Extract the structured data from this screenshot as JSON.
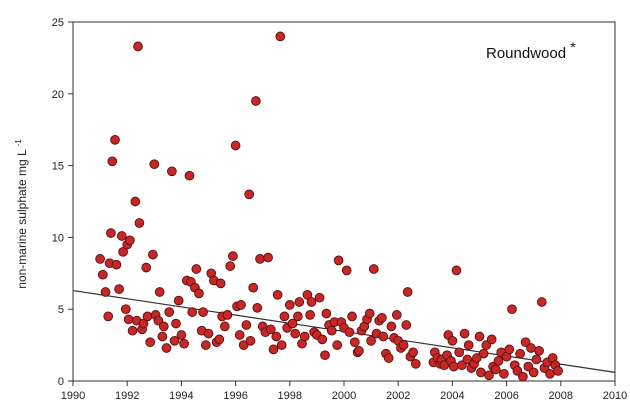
{
  "chart_data": {
    "type": "scatter",
    "site_label": "Roundwood",
    "site_marker": "*",
    "xlabel": "",
    "ylabel_main": "non-marine sulphate mg L",
    "ylabel_sup": "-1",
    "xlim": [
      1990,
      2010
    ],
    "ylim": [
      0,
      25
    ],
    "xticks": [
      1990,
      1992,
      1994,
      1996,
      1998,
      2000,
      2002,
      2004,
      2006,
      2008,
      2010
    ],
    "yticks": [
      0,
      5,
      10,
      15,
      20,
      25
    ],
    "point_color": "#c62828",
    "trend": {
      "x1": 1990,
      "y1": 6.3,
      "x2": 2010,
      "y2": 0.6
    },
    "series": [
      {
        "points": [
          [
            1991.0,
            8.5
          ],
          [
            1991.1,
            7.4
          ],
          [
            1991.2,
            6.2
          ],
          [
            1991.3,
            4.5
          ],
          [
            1991.35,
            8.2
          ],
          [
            1991.4,
            10.3
          ],
          [
            1991.45,
            15.3
          ],
          [
            1991.55,
            16.8
          ],
          [
            1991.6,
            8.1
          ],
          [
            1991.7,
            6.4
          ],
          [
            1991.8,
            10.1
          ],
          [
            1991.85,
            9.0
          ],
          [
            1991.95,
            5.0
          ],
          [
            1992.0,
            9.5
          ],
          [
            1992.05,
            4.3
          ],
          [
            1992.1,
            9.8
          ],
          [
            1992.2,
            3.5
          ],
          [
            1992.3,
            12.5
          ],
          [
            1992.35,
            4.2
          ],
          [
            1992.4,
            23.3
          ],
          [
            1992.45,
            11.0
          ],
          [
            1992.55,
            3.6
          ],
          [
            1992.6,
            4.0
          ],
          [
            1992.7,
            7.9
          ],
          [
            1992.75,
            4.5
          ],
          [
            1992.85,
            2.7
          ],
          [
            1992.95,
            8.8
          ],
          [
            1993.0,
            15.1
          ],
          [
            1993.05,
            4.6
          ],
          [
            1993.15,
            4.2
          ],
          [
            1993.2,
            6.2
          ],
          [
            1993.3,
            3.1
          ],
          [
            1993.35,
            3.8
          ],
          [
            1993.45,
            2.3
          ],
          [
            1993.55,
            4.8
          ],
          [
            1993.65,
            14.6
          ],
          [
            1993.75,
            2.8
          ],
          [
            1993.8,
            4.0
          ],
          [
            1993.9,
            5.6
          ],
          [
            1994.0,
            3.2
          ],
          [
            1994.1,
            2.6
          ],
          [
            1994.2,
            7.0
          ],
          [
            1994.3,
            14.3
          ],
          [
            1994.35,
            6.9
          ],
          [
            1994.4,
            4.8
          ],
          [
            1994.5,
            6.5
          ],
          [
            1994.55,
            7.8
          ],
          [
            1994.65,
            6.1
          ],
          [
            1994.75,
            3.5
          ],
          [
            1994.8,
            4.8
          ],
          [
            1994.9,
            2.5
          ],
          [
            1995.0,
            3.3
          ],
          [
            1995.1,
            7.5
          ],
          [
            1995.2,
            7.0
          ],
          [
            1995.3,
            2.7
          ],
          [
            1995.4,
            2.9
          ],
          [
            1995.45,
            6.8
          ],
          [
            1995.5,
            4.5
          ],
          [
            1995.6,
            3.8
          ],
          [
            1995.7,
            4.6
          ],
          [
            1995.8,
            8.0
          ],
          [
            1995.9,
            8.7
          ],
          [
            1996.0,
            16.4
          ],
          [
            1996.05,
            5.2
          ],
          [
            1996.15,
            3.2
          ],
          [
            1996.2,
            5.3
          ],
          [
            1996.3,
            2.5
          ],
          [
            1996.4,
            3.9
          ],
          [
            1996.5,
            13.0
          ],
          [
            1996.55,
            2.8
          ],
          [
            1996.65,
            6.5
          ],
          [
            1996.75,
            19.5
          ],
          [
            1996.8,
            5.1
          ],
          [
            1996.9,
            8.5
          ],
          [
            1997.0,
            3.8
          ],
          [
            1997.1,
            3.4
          ],
          [
            1997.2,
            8.6
          ],
          [
            1997.3,
            3.6
          ],
          [
            1997.4,
            2.2
          ],
          [
            1997.5,
            3.1
          ],
          [
            1997.55,
            6.0
          ],
          [
            1997.65,
            24.0
          ],
          [
            1997.7,
            2.5
          ],
          [
            1997.8,
            4.5
          ],
          [
            1997.9,
            3.7
          ],
          [
            1998.0,
            5.3
          ],
          [
            1998.1,
            4.0
          ],
          [
            1998.2,
            3.3
          ],
          [
            1998.3,
            4.5
          ],
          [
            1998.35,
            5.5
          ],
          [
            1998.45,
            2.6
          ],
          [
            1998.55,
            3.1
          ],
          [
            1998.65,
            6.0
          ],
          [
            1998.75,
            4.6
          ],
          [
            1998.8,
            5.5
          ],
          [
            1998.9,
            3.4
          ],
          [
            1999.0,
            3.2
          ],
          [
            1999.1,
            5.8
          ],
          [
            1999.2,
            2.9
          ],
          [
            1999.3,
            1.8
          ],
          [
            1999.35,
            4.7
          ],
          [
            1999.45,
            3.9
          ],
          [
            1999.55,
            3.5
          ],
          [
            1999.65,
            4.1
          ],
          [
            1999.75,
            2.5
          ],
          [
            1999.8,
            8.4
          ],
          [
            1999.9,
            4.1
          ],
          [
            2000.0,
            3.7
          ],
          [
            2000.1,
            7.7
          ],
          [
            2000.2,
            3.4
          ],
          [
            2000.3,
            4.5
          ],
          [
            2000.4,
            2.7
          ],
          [
            2000.5,
            2.0
          ],
          [
            2000.55,
            2.1
          ],
          [
            2000.65,
            3.5
          ],
          [
            2000.75,
            3.8
          ],
          [
            2000.85,
            4.3
          ],
          [
            2000.95,
            4.7
          ],
          [
            2001.0,
            2.8
          ],
          [
            2001.1,
            7.8
          ],
          [
            2001.2,
            3.3
          ],
          [
            2001.3,
            4.2
          ],
          [
            2001.4,
            4.4
          ],
          [
            2001.45,
            3.1
          ],
          [
            2001.55,
            1.9
          ],
          [
            2001.65,
            1.6
          ],
          [
            2001.75,
            3.8
          ],
          [
            2001.85,
            3.0
          ],
          [
            2001.95,
            4.6
          ],
          [
            2002.0,
            2.8
          ],
          [
            2002.1,
            2.3
          ],
          [
            2002.2,
            2.5
          ],
          [
            2002.3,
            3.9
          ],
          [
            2002.35,
            6.2
          ],
          [
            2002.45,
            1.7
          ],
          [
            2002.55,
            2.0
          ],
          [
            2002.65,
            1.2
          ],
          [
            2003.3,
            1.3
          ],
          [
            2003.35,
            2.0
          ],
          [
            2003.45,
            1.6
          ],
          [
            2003.55,
            1.2
          ],
          [
            2003.6,
            1.5
          ],
          [
            2003.7,
            1.1
          ],
          [
            2003.8,
            1.8
          ],
          [
            2003.85,
            3.2
          ],
          [
            2003.95,
            1.4
          ],
          [
            2004.0,
            2.8
          ],
          [
            2004.05,
            1.0
          ],
          [
            2004.15,
            7.7
          ],
          [
            2004.25,
            2.0
          ],
          [
            2004.35,
            1.1
          ],
          [
            2004.45,
            3.3
          ],
          [
            2004.55,
            1.5
          ],
          [
            2004.6,
            2.5
          ],
          [
            2004.7,
            0.9
          ],
          [
            2004.8,
            1.2
          ],
          [
            2004.9,
            1.6
          ],
          [
            2005.0,
            3.1
          ],
          [
            2005.05,
            0.6
          ],
          [
            2005.15,
            1.9
          ],
          [
            2005.25,
            2.5
          ],
          [
            2005.35,
            0.4
          ],
          [
            2005.45,
            2.9
          ],
          [
            2005.5,
            1.0
          ],
          [
            2005.6,
            0.8
          ],
          [
            2005.7,
            1.4
          ],
          [
            2005.8,
            2.0
          ],
          [
            2005.9,
            0.5
          ],
          [
            2006.0,
            1.7
          ],
          [
            2006.1,
            2.2
          ],
          [
            2006.2,
            5.0
          ],
          [
            2006.3,
            1.1
          ],
          [
            2006.4,
            0.7
          ],
          [
            2006.5,
            1.9
          ],
          [
            2006.6,
            0.3
          ],
          [
            2006.7,
            2.7
          ],
          [
            2006.8,
            1.0
          ],
          [
            2006.9,
            2.3
          ],
          [
            2007.0,
            0.6
          ],
          [
            2007.1,
            1.5
          ],
          [
            2007.2,
            2.1
          ],
          [
            2007.3,
            5.5
          ],
          [
            2007.4,
            0.9
          ],
          [
            2007.5,
            1.3
          ],
          [
            2007.6,
            0.5
          ],
          [
            2007.7,
            1.6
          ],
          [
            2007.8,
            1.1
          ],
          [
            2007.9,
            0.7
          ]
        ]
      }
    ]
  }
}
